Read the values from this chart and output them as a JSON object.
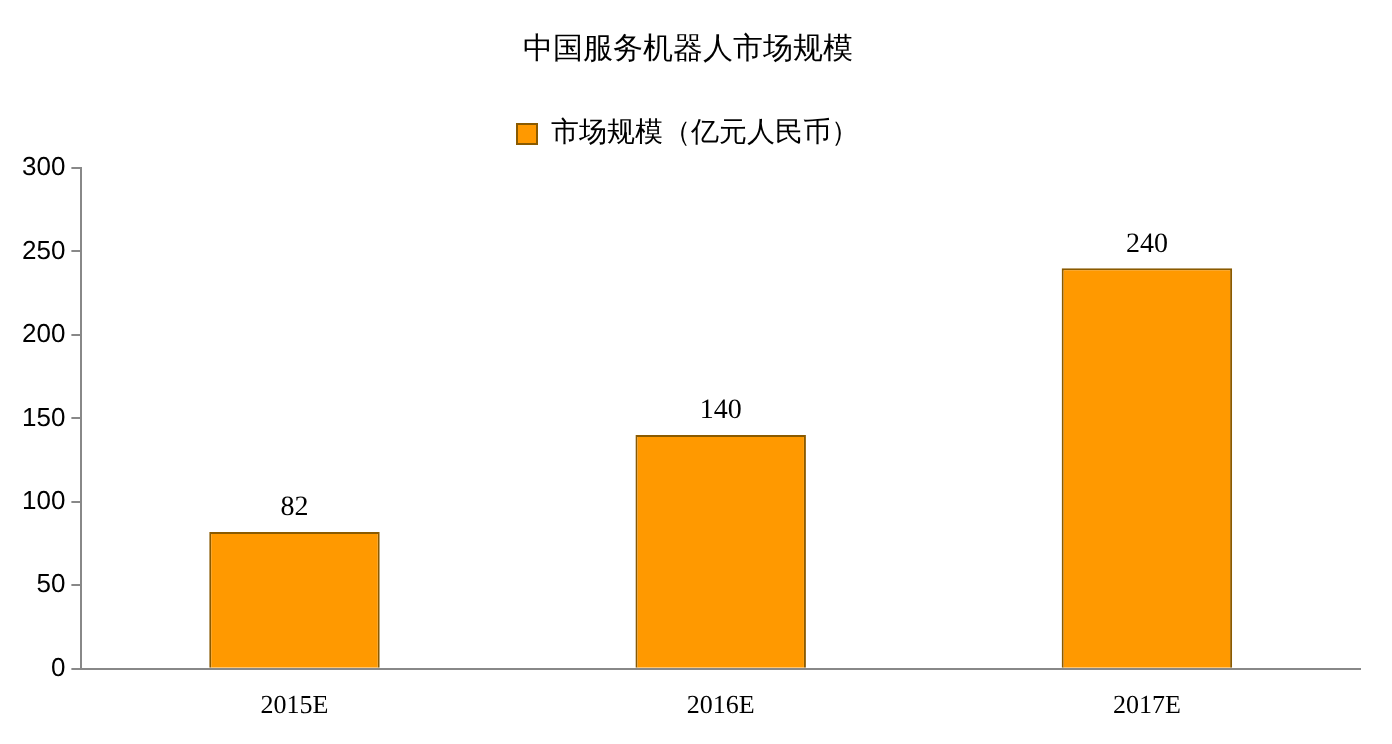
{
  "chart_data": {
    "type": "bar",
    "title": "中国服务机器人市场规模",
    "categories": [
      "2015E",
      "2016E",
      "2017E"
    ],
    "series": [
      {
        "name": "市场规模（亿元人民币）",
        "color": "#ff9900",
        "values": [
          82,
          140,
          240
        ]
      }
    ],
    "ylim": [
      0,
      300
    ],
    "yticks": [
      0,
      50,
      100,
      150,
      200,
      250,
      300
    ],
    "grid": false,
    "legend": "top",
    "data_labels": true
  }
}
